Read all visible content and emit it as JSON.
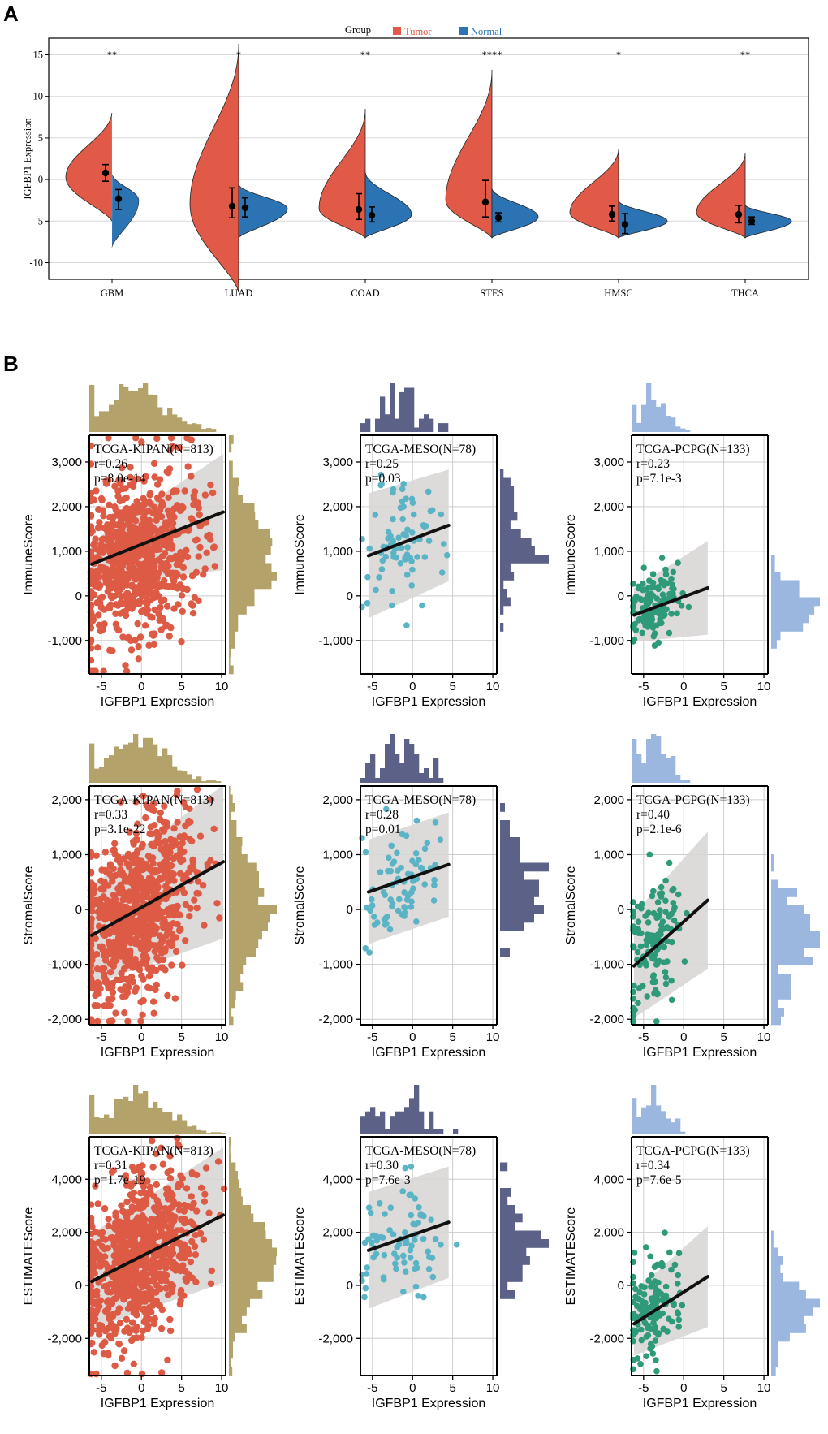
{
  "panel_a_letter": "A",
  "panel_b_letter": "B",
  "colors": {
    "tumor": "#e05a47",
    "normal": "#2b73b3",
    "kipan_point": "#dd5a45",
    "kipan_hist": "#b3a36a",
    "meso_point": "#5bb4c6",
    "meso_hist": "#5c6287",
    "pcpg_point": "#2e9a7a",
    "pcpg_hist": "#9bb7e0"
  },
  "chart_data": [
    {
      "type": "violin",
      "title": "",
      "ylabel": "IGFBP1  Expression",
      "xlabel": "",
      "ylim": [
        -12,
        17
      ],
      "yticks": [
        "-10",
        "-5",
        "0",
        "5",
        "10",
        "15"
      ],
      "legend": {
        "title": "Group",
        "entries": [
          "Tumor",
          "Normal"
        ],
        "position": "top-center"
      },
      "categories": [
        "GBM",
        "LUAD",
        "COAD",
        "STES",
        "HMSC",
        "THCA"
      ],
      "significance": [
        "**",
        "*",
        "**",
        "****",
        "*",
        "**"
      ],
      "series": [
        {
          "name": "Tumor",
          "min": [
            -5,
            -13.5,
            -7,
            -7,
            -7,
            -7
          ],
          "max": [
            8.3,
            16.3,
            8.5,
            13.2,
            3.7,
            3.2
          ],
          "mode": [
            0.3,
            -3.0,
            -3.5,
            -2.5,
            -4.0,
            -4.0
          ],
          "median": [
            0.8,
            -3.2,
            -3.6,
            -2.7,
            -4.2,
            -4.2
          ],
          "q1": [
            -0.2,
            -4.6,
            -4.8,
            -4.5,
            -5.0,
            -5.2
          ],
          "q3": [
            1.8,
            -1.0,
            -1.7,
            -0.1,
            -3.2,
            -3.1
          ]
        },
        {
          "name": "Normal",
          "min": [
            -8.1,
            -7,
            -7,
            -7,
            -7,
            -7
          ],
          "max": [
            0.8,
            -0.5,
            1.0,
            -1.0,
            -2.5,
            -3.0
          ],
          "mode": [
            -2.5,
            -3.5,
            -4.2,
            -4.5,
            -5.0,
            -5.0
          ],
          "median": [
            -2.3,
            -3.4,
            -4.3,
            -4.6,
            -5.4,
            -5.0
          ],
          "q1": [
            -3.6,
            -4.5,
            -5.1,
            -5.1,
            -6.5,
            -5.4
          ],
          "q3": [
            -1.2,
            -2.2,
            -3.3,
            -4.0,
            -4.1,
            -4.5
          ]
        }
      ]
    },
    {
      "type": "scatter",
      "ylabel": "ImmuneScore",
      "xlabel": "IGFBP1 Expression",
      "cohort": "TCGA-KIPAN(N=813)",
      "r": "r=0.26",
      "p": "p=8.0e-14",
      "n_points": 813,
      "xlim": [
        -6.5,
        10.5
      ],
      "ylim": [
        -1750,
        3600
      ],
      "xticks": [
        "-5",
        "0",
        "5",
        "10"
      ],
      "yticks": [
        "-1,000",
        "0",
        "1,000",
        "2,000",
        "3,000"
      ],
      "x_center": -0.5,
      "x_spread": 3.6,
      "y_center": 900,
      "y_spread": 900,
      "slope": 69,
      "line_x": [
        -6.2,
        10.2
      ],
      "line_y": [
        710,
        1880
      ],
      "band": [
        500,
        1300
      ],
      "point_color": "kipan"
    },
    {
      "type": "scatter",
      "ylabel": "ImmuneScore",
      "xlabel": "IGFBP1 Expression",
      "cohort": "TCGA-MESO(N=78)",
      "r": "r=0.25",
      "p": "p=0.03",
      "n_points": 78,
      "xlim": [
        -6.5,
        10.5
      ],
      "ylim": [
        -1750,
        3600
      ],
      "xticks": [
        "-5",
        "0",
        "5",
        "10"
      ],
      "yticks": [
        "-1,000",
        "0",
        "1,000",
        "2,000",
        "3,000"
      ],
      "x_center": -1.5,
      "x_spread": 2.6,
      "y_center": 1200,
      "y_spread": 700,
      "slope": 65,
      "line_x": [
        -5.5,
        4.5
      ],
      "line_y": [
        900,
        1580
      ],
      "band": [
        1400,
        1250
      ],
      "point_color": "meso"
    },
    {
      "type": "scatter",
      "ylabel": "ImmuneScore",
      "xlabel": "IGFBP1 Expression",
      "cohort": "TCGA-PCPG(N=133)",
      "r": "r=0.23",
      "p": "p=7.1e-3",
      "n_points": 133,
      "xlim": [
        -6.5,
        10.5
      ],
      "ylim": [
        -1750,
        3600
      ],
      "xticks": [
        "-5",
        "0",
        "5",
        "10"
      ],
      "yticks": [
        "-1,000",
        "0",
        "1,000",
        "2,000",
        "3,000"
      ],
      "x_center": -3.8,
      "x_spread": 1.6,
      "y_center": -180,
      "y_spread": 380,
      "slope": 65,
      "line_x": [
        -6.2,
        3.0
      ],
      "line_y": [
        -430,
        180
      ],
      "band": [
        600,
        1050
      ],
      "point_color": "pcpg"
    },
    {
      "type": "scatter",
      "ylabel": "StromalScore",
      "xlabel": "IGFBP1 Expression",
      "cohort": "TCGA-KIPAN(N=813)",
      "r": "r=0.33",
      "p": "p=3.1e-22",
      "n_points": 813,
      "xlim": [
        -6.5,
        10.5
      ],
      "ylim": [
        -2100,
        2250
      ],
      "xticks": [
        "-5",
        "0",
        "5",
        "10"
      ],
      "yticks": [
        "-2,000",
        "-1,000",
        "0",
        "1,000",
        "2,000"
      ],
      "x_center": -0.5,
      "x_spread": 3.6,
      "y_center": 0,
      "y_spread": 780,
      "slope": 85,
      "line_x": [
        -6.2,
        10.2
      ],
      "line_y": [
        -470,
        870
      ],
      "band": [
        900,
        1400
      ],
      "point_color": "kipan"
    },
    {
      "type": "scatter",
      "ylabel": "StromalScore",
      "xlabel": "IGFBP1 Expression",
      "cohort": "TCGA-MESO(N=78)",
      "r": "r=0.28",
      "p": "p=0.01",
      "n_points": 78,
      "xlim": [
        -6.5,
        10.5
      ],
      "ylim": [
        -2100,
        2250
      ],
      "xticks": [
        "-5",
        "0",
        "5",
        "10"
      ],
      "yticks": [
        "-2,000",
        "-1,000",
        "0",
        "1,000",
        "2,000"
      ],
      "x_center": -1.5,
      "x_spread": 2.6,
      "y_center": 450,
      "y_spread": 500,
      "slope": 50,
      "line_x": [
        -5.5,
        4.5
      ],
      "line_y": [
        320,
        820
      ],
      "band": [
        950,
        950
      ],
      "point_color": "meso"
    },
    {
      "type": "scatter",
      "ylabel": "StromalScore",
      "xlabel": "IGFBP1 Expression",
      "cohort": "TCGA-PCPG(N=133)",
      "r": "r=0.40",
      "p": "p=2.1e-6",
      "n_points": 133,
      "xlim": [
        -6.5,
        10.5
      ],
      "ylim": [
        -2100,
        2250
      ],
      "xticks": [
        "-5",
        "0",
        "5",
        "10"
      ],
      "yticks": [
        "-2,000",
        "-1,000",
        "0",
        "1,000",
        "2,000"
      ],
      "x_center": -3.8,
      "x_spread": 1.6,
      "y_center": -700,
      "y_spread": 550,
      "slope": 130,
      "line_x": [
        -6.2,
        3.0
      ],
      "line_y": [
        -1030,
        170
      ],
      "band": [
        950,
        1250
      ],
      "point_color": "pcpg"
    },
    {
      "type": "scatter",
      "ylabel": "ESTIMATEScore",
      "xlabel": "IGFBP1 Expression",
      "cohort": "TCGA-KIPAN(N=813)",
      "r": "r=0.31",
      "p": "p=1.7e-19",
      "n_points": 813,
      "xlim": [
        -6.5,
        10.5
      ],
      "ylim": [
        -3400,
        5600
      ],
      "xticks": [
        "-5",
        "0",
        "5",
        "10"
      ],
      "yticks": [
        "-2,000",
        "0",
        "2,000",
        "4,000"
      ],
      "x_center": -0.5,
      "x_spread": 3.6,
      "y_center": 1000,
      "y_spread": 1450,
      "slope": 150,
      "line_x": [
        -6.2,
        10.2
      ],
      "line_y": [
        150,
        2650
      ],
      "band": [
        1800,
        2550
      ],
      "point_color": "kipan"
    },
    {
      "type": "scatter",
      "ylabel": "ESTIMATEScore",
      "xlabel": "IGFBP1 Expression",
      "cohort": "TCGA-MESO(N=78)",
      "r": "r=0.30",
      "p": "p=7.6e-3",
      "n_points": 78,
      "xlim": [
        -6.5,
        10.5
      ],
      "ylim": [
        -3400,
        5600
      ],
      "xticks": [
        "-5",
        "0",
        "5",
        "10"
      ],
      "yticks": [
        "-2,000",
        "0",
        "2,000",
        "4,000"
      ],
      "x_center": -1.5,
      "x_spread": 2.6,
      "y_center": 1700,
      "y_spread": 1000,
      "slope": 105,
      "line_x": [
        -5.5,
        4.5
      ],
      "line_y": [
        1320,
        2380
      ],
      "band": [
        2200,
        2100
      ],
      "point_color": "meso"
    },
    {
      "type": "scatter",
      "ylabel": "ESTIMATEScore",
      "xlabel": "IGFBP1 Expression",
      "cohort": "TCGA-PCPG(N=133)",
      "r": "r=0.34",
      "p": "p=7.6e-5",
      "n_points": 133,
      "xlim": [
        -6.5,
        10.5
      ],
      "ylim": [
        -3400,
        5600
      ],
      "xticks": [
        "-5",
        "0",
        "5",
        "10"
      ],
      "yticks": [
        "-2,000",
        "0",
        "2,000",
        "4,000"
      ],
      "x_center": -3.8,
      "x_spread": 1.6,
      "y_center": -800,
      "y_spread": 950,
      "slope": 185,
      "line_x": [
        -6.2,
        3.0
      ],
      "line_y": [
        -1450,
        330
      ],
      "band": [
        1200,
        1900
      ],
      "point_color": "pcpg"
    }
  ]
}
